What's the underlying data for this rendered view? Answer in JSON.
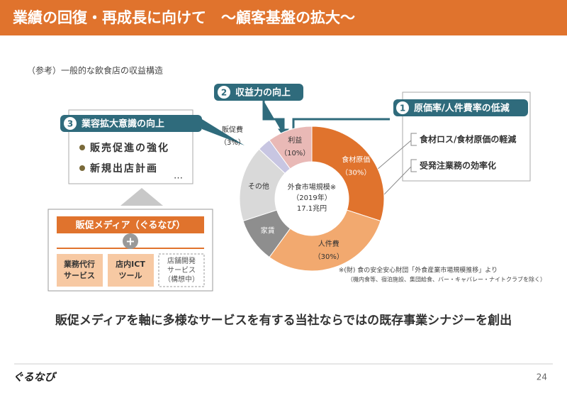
{
  "header": {
    "title": "業績の回復・再成長に向けて　～顧客基盤の拡大～"
  },
  "note": "（参考）一般的な飲食店の収益構造",
  "callouts": [
    {
      "number": "1",
      "label": "原価率/人件費率の低減",
      "items": [
        "食材ロス/食材原価の軽減",
        "受発注業務の効率化"
      ]
    },
    {
      "number": "2",
      "label": "収益力の向上"
    },
    {
      "number": "3",
      "label": "業容拡大意識の向上",
      "items": [
        "販売促進の強化",
        "新規出店計画",
        "…"
      ]
    }
  ],
  "media": {
    "title": "販促メディア（ぐるなび）",
    "plus": "+",
    "services": [
      [
        "業務代行",
        "サービス"
      ],
      [
        "店内ICT",
        "ツール"
      ],
      [
        "店舗開発",
        "サービス",
        "（構想中）"
      ]
    ]
  },
  "chart_data": {
    "type": "donut",
    "center_label": [
      "外食市場規模※",
      "（2019年）",
      "17.1兆円"
    ],
    "categories": [
      "食材原価",
      "人件費",
      "家賃",
      "その他",
      "販促費",
      "利益"
    ],
    "values": [
      30,
      30,
      10,
      17,
      3,
      10
    ],
    "value_labels": [
      "（30%）",
      "（30%）",
      null,
      null,
      "（3%）",
      "（10%）"
    ],
    "colors": [
      "#e0732d",
      "#f2a96f",
      "#8e8e8e",
      "#d9d9d9",
      "#c8c6e2",
      "#e9b9b6"
    ],
    "source": [
      "※(財) 食の安全安心財団「外食産業市場規模推移」より",
      "（機内食等、宿泊施設、集団給食、バー・キャバレー・ナイトクラブを除く）"
    ]
  },
  "conclusion": "販促メディアを軸に多様なサービスを有する当社ならではの既存事業シナジーを創出",
  "footer": {
    "logo": "ぐるなび",
    "page": "24"
  }
}
